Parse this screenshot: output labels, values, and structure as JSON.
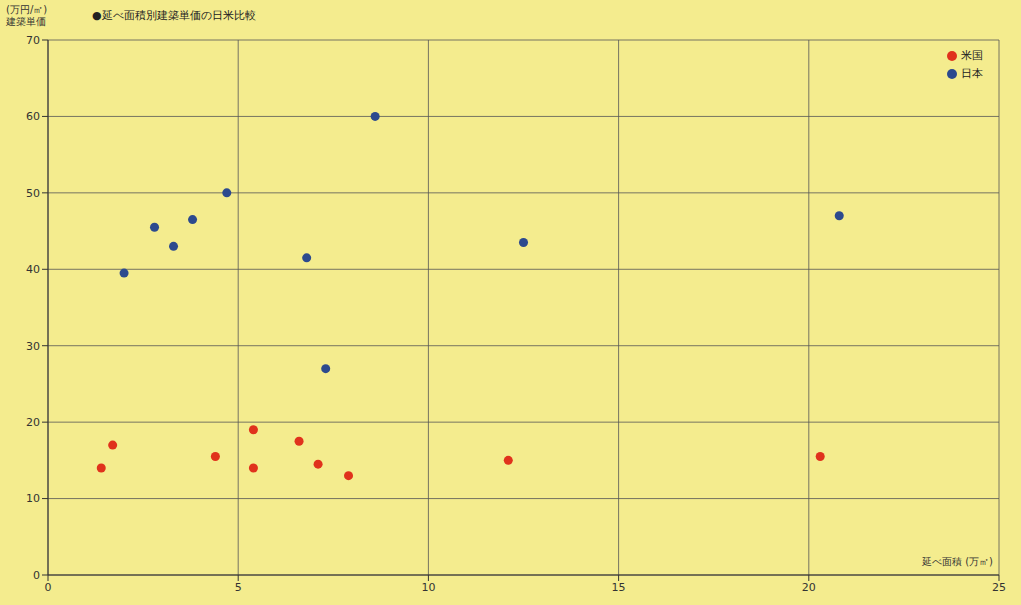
{
  "chart_data": {
    "type": "scatter",
    "title": "●延べ面積別建築単価の日米比較",
    "xlabel": "延べ面積 (万㎡)",
    "ylabel": [
      "(万円/㎡)",
      "建築単価"
    ],
    "xlim": [
      0,
      25
    ],
    "xticks": [
      0,
      5,
      10,
      15,
      20,
      25
    ],
    "ylim": [
      0,
      70
    ],
    "yticks": [
      0,
      10,
      20,
      30,
      40,
      50,
      60,
      70
    ],
    "grid": true,
    "legend": "upper right",
    "series": [
      {
        "name": "米国",
        "color": "#e0321c",
        "x": [
          1.4,
          1.7,
          4.4,
          5.4,
          5.4,
          6.6,
          7.1,
          7.9,
          12.1,
          20.3
        ],
        "values": [
          14,
          17,
          15.5,
          19,
          14,
          17.5,
          14.5,
          13,
          15,
          15.5
        ]
      },
      {
        "name": "日本",
        "color": "#2c4a8e",
        "x": [
          2.0,
          2.8,
          3.3,
          3.8,
          4.7,
          6.8,
          7.3,
          8.6,
          12.5,
          20.8
        ],
        "values": [
          39.5,
          45.5,
          43,
          46.5,
          50,
          41.5,
          27,
          60,
          43.5,
          47
        ]
      }
    ]
  }
}
